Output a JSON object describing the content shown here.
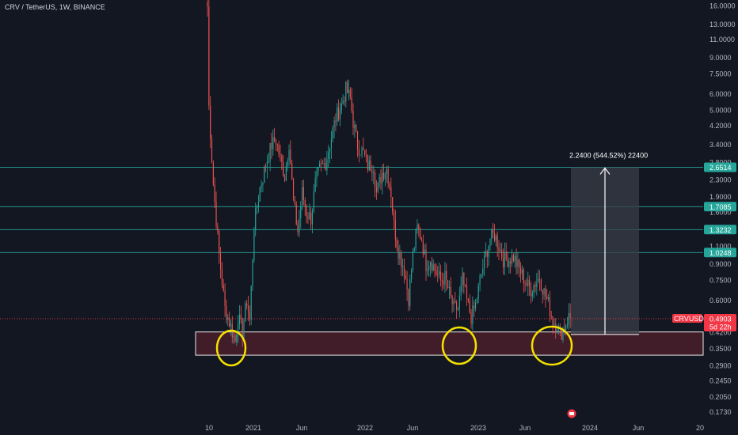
{
  "header": {
    "symbol_title": "CRV / TetherUS, 1W, BINANCE"
  },
  "colors": {
    "background": "#131722",
    "up": "#26a69a",
    "down": "#ef5350",
    "level_line": "#26a69a",
    "level_tag": "#26a69a",
    "support_zone": "#4a1f2a",
    "circle": "#f5e000",
    "measure_box": "#3a3d47",
    "price_tag": "#f23645"
  },
  "chart_data": {
    "type": "candlestick",
    "title": "CRV / TetherUS, 1W, BINANCE",
    "y_scale": "log",
    "ylim": [
      0.16,
      16.5
    ],
    "y_ticks": [
      "16.0000",
      "13.0000",
      "11.0000",
      "9.0000",
      "7.5000",
      "6.0000",
      "5.0000",
      "4.2000",
      "3.4000",
      "2.8000",
      "2.3000",
      "1.9000",
      "1.6000",
      "1.1000",
      "0.9000",
      "0.7500",
      "0.6000",
      "0.4200",
      "0.3500",
      "0.2900",
      "0.2450",
      "0.2050",
      "0.1730"
    ],
    "x_ticks": [
      "10",
      "2021",
      "Jun",
      "2022",
      "Jun",
      "2023",
      "Jun",
      "2024",
      "Jun",
      "20"
    ],
    "levels": [
      {
        "label": "2.6514",
        "value": 2.6514
      },
      {
        "label": "1.7085",
        "value": 1.7085
      },
      {
        "label": "1.3232",
        "value": 1.3232
      },
      {
        "label": "1.0248",
        "value": 1.0248
      }
    ],
    "support_zone": [
      0.3265,
      0.4229
    ],
    "measure": {
      "label": "2.2400 (544.52%) 22400",
      "from": 0.4114,
      "to": 2.6514
    },
    "last_price": {
      "symbol": "CRVUSDT",
      "price": "0.4903",
      "countdown": "5d 22h",
      "value": 0.4903
    },
    "anchors": [
      [
        0,
        15.9
      ],
      [
        1,
        5.2
      ],
      [
        4,
        2.2
      ],
      [
        8,
        1.0
      ],
      [
        12,
        0.55
      ],
      [
        16,
        0.45
      ],
      [
        19,
        0.38
      ],
      [
        21,
        0.5
      ],
      [
        24,
        0.43
      ],
      [
        27,
        0.6
      ],
      [
        29,
        0.48
      ],
      [
        32,
        1.4
      ],
      [
        36,
        2.1
      ],
      [
        41,
        2.9
      ],
      [
        44,
        3.4
      ],
      [
        47,
        3.6
      ],
      [
        50,
        2.9
      ],
      [
        53,
        2.4
      ],
      [
        56,
        3.5
      ],
      [
        59,
        1.8
      ],
      [
        62,
        1.3
      ],
      [
        65,
        2.0
      ],
      [
        68,
        1.6
      ],
      [
        71,
        1.5
      ],
      [
        74,
        2.2
      ],
      [
        77,
        2.6
      ],
      [
        81,
        2.8
      ],
      [
        85,
        3.7
      ],
      [
        88,
        4.6
      ],
      [
        92,
        5.3
      ],
      [
        95,
        6.3
      ],
      [
        98,
        5.7
      ],
      [
        100,
        4.4
      ],
      [
        103,
        3.4
      ],
      [
        107,
        3.1
      ],
      [
        110,
        2.7
      ],
      [
        114,
        2.7
      ],
      [
        116,
        2.0
      ],
      [
        120,
        2.5
      ],
      [
        123,
        2.6
      ],
      [
        126,
        2.0
      ],
      [
        128,
        1.4
      ],
      [
        131,
        1.05
      ],
      [
        135,
        0.85
      ],
      [
        138,
        0.62
      ],
      [
        141,
        1.0
      ],
      [
        144,
        1.35
      ],
      [
        147,
        1.2
      ],
      [
        150,
        0.9
      ],
      [
        153,
        0.95
      ],
      [
        156,
        0.85
      ],
      [
        160,
        0.75
      ],
      [
        163,
        0.78
      ],
      [
        166,
        0.65
      ],
      [
        169,
        0.55
      ],
      [
        172,
        0.55
      ],
      [
        175,
        0.76
      ],
      [
        178,
        0.6
      ],
      [
        181,
        0.5
      ],
      [
        184,
        0.57
      ],
      [
        187,
        0.75
      ],
      [
        191,
        1.0
      ],
      [
        194,
        1.2
      ],
      [
        197,
        1.25
      ],
      [
        200,
        1.1
      ],
      [
        203,
        0.95
      ],
      [
        207,
        0.95
      ],
      [
        210,
        0.98
      ],
      [
        213,
        0.88
      ],
      [
        216,
        0.8
      ],
      [
        219,
        0.72
      ],
      [
        222,
        0.68
      ],
      [
        225,
        0.73
      ],
      [
        228,
        0.78
      ],
      [
        231,
        0.66
      ],
      [
        234,
        0.58
      ],
      [
        237,
        0.48
      ],
      [
        240,
        0.46
      ],
      [
        242,
        0.41
      ],
      [
        245,
        0.45
      ],
      [
        248,
        0.5
      ],
      [
        250,
        0.4903
      ]
    ]
  }
}
